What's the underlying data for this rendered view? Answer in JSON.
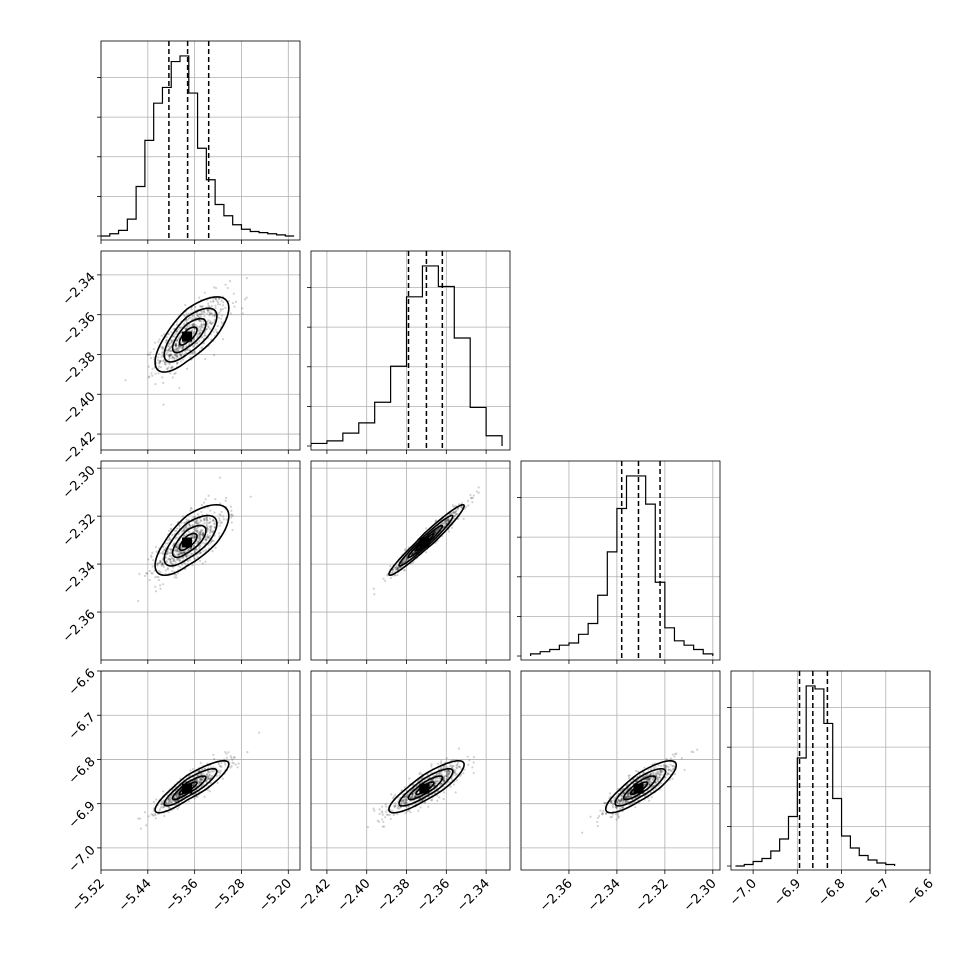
{
  "chart_data": {
    "type": "corner",
    "title": "",
    "parameters": [
      {
        "name": "",
        "range": [
          -5.52,
          -5.18
        ],
        "ticks": [
          -5.52,
          -5.44,
          -5.36,
          -5.28,
          -5.2
        ],
        "tick_labels": [
          "−5.52",
          "−5.44",
          "−5.36",
          "−5.28",
          "−5.20"
        ],
        "peak": -5.373,
        "sigma_left": 0.026,
        "sigma_right": 0.034,
        "quantiles": [
          -5.404,
          -5.372,
          -5.336
        ],
        "histogram": {
          "edges": [
            -5.52,
            -5.505,
            -5.49,
            -5.475,
            -5.46,
            -5.445,
            -5.43,
            -5.415,
            -5.4,
            -5.385,
            -5.37,
            -5.355,
            -5.34,
            -5.325,
            -5.31,
            -5.295,
            -5.28,
            -5.265,
            -5.25,
            -5.235,
            -5.22,
            -5.205,
            -5.19
          ],
          "counts": [
            0,
            2,
            5,
            15,
            44,
            85,
            118,
            132,
            155,
            160,
            127,
            78,
            50,
            28,
            18,
            10,
            6,
            4,
            3,
            2,
            1,
            0
          ]
        }
      },
      {
        "name": "",
        "range": [
          -2.428,
          -2.328
        ],
        "ticks": [
          -2.42,
          -2.4,
          -2.38,
          -2.36,
          -2.34
        ],
        "tick_labels": [
          "−2.42",
          "−2.40",
          "−2.38",
          "−2.36",
          "−2.34"
        ],
        "peak": -2.371,
        "sigma_left": 0.0085,
        "sigma_right": 0.0095,
        "quantiles": [
          -2.379,
          -2.37,
          -2.362
        ],
        "histogram": {
          "edges": [
            -2.428,
            -2.42,
            -2.412,
            -2.404,
            -2.396,
            -2.388,
            -2.38,
            -2.372,
            -2.364,
            -2.356,
            -2.348,
            -2.34,
            -2.332
          ],
          "counts": [
            1,
            2,
            5,
            9,
            17,
            31,
            58,
            70,
            62,
            42,
            15,
            4
          ]
        }
      },
      {
        "name": "",
        "range": [
          -2.38,
          -2.297
        ],
        "ticks": [
          -2.36,
          -2.34,
          -2.32,
          -2.3
        ],
        "tick_labels": [
          "−2.36",
          "−2.34",
          "−2.32",
          "−2.30"
        ],
        "peak": -2.331,
        "sigma_left": 0.0065,
        "sigma_right": 0.0075,
        "quantiles": [
          -2.338,
          -2.331,
          -2.322
        ],
        "histogram": {
          "edges": [
            -2.376,
            -2.372,
            -2.368,
            -2.364,
            -2.36,
            -2.356,
            -2.352,
            -2.348,
            -2.344,
            -2.34,
            -2.336,
            -2.332,
            -2.328,
            -2.324,
            -2.32,
            -2.316,
            -2.312,
            -2.308,
            -2.304,
            -2.3
          ],
          "counts": [
            1,
            2,
            3,
            5,
            6,
            10,
            15,
            28,
            48,
            68,
            83,
            83,
            70,
            34,
            13,
            7,
            5,
            3,
            1
          ]
        }
      },
      {
        "name": "",
        "range": [
          -7.05,
          -6.6
        ],
        "ticks": [
          -7.0,
          -6.9,
          -6.8,
          -6.7,
          -6.6
        ],
        "tick_labels": [
          "−7.0",
          "−6.9",
          "−6.8",
          "−6.7",
          "−6.6"
        ],
        "peak": -6.866,
        "sigma_left": 0.026,
        "sigma_right": 0.03,
        "quantiles": [
          -6.895,
          -6.865,
          -6.832
        ],
        "histogram": {
          "edges": [
            -7.04,
            -7.02,
            -7.0,
            -6.98,
            -6.96,
            -6.94,
            -6.92,
            -6.9,
            -6.88,
            -6.86,
            -6.84,
            -6.82,
            -6.8,
            -6.78,
            -6.76,
            -6.74,
            -6.72,
            -6.7,
            -6.68
          ],
          "counts": [
            0,
            1,
            3,
            5,
            10,
            18,
            33,
            72,
            120,
            118,
            95,
            45,
            20,
            12,
            7,
            4,
            2,
            1
          ]
        }
      }
    ],
    "correlation": [
      [
        1.0,
        0.72,
        0.7,
        0.88
      ],
      [
        0.72,
        1.0,
        0.97,
        0.86
      ],
      [
        0.7,
        0.97,
        1.0,
        0.84
      ],
      [
        0.88,
        0.86,
        0.84,
        1.0
      ]
    ],
    "scatter_points_per_panel": 700,
    "grid": true,
    "colors": {
      "hist": "#000000",
      "scatter": "#000000",
      "grid": "#b0b0b0",
      "fill_levels": [
        "#ebebeb",
        "#c8c8c8",
        "#9a9a9a",
        "#555555",
        "#000000"
      ]
    }
  }
}
